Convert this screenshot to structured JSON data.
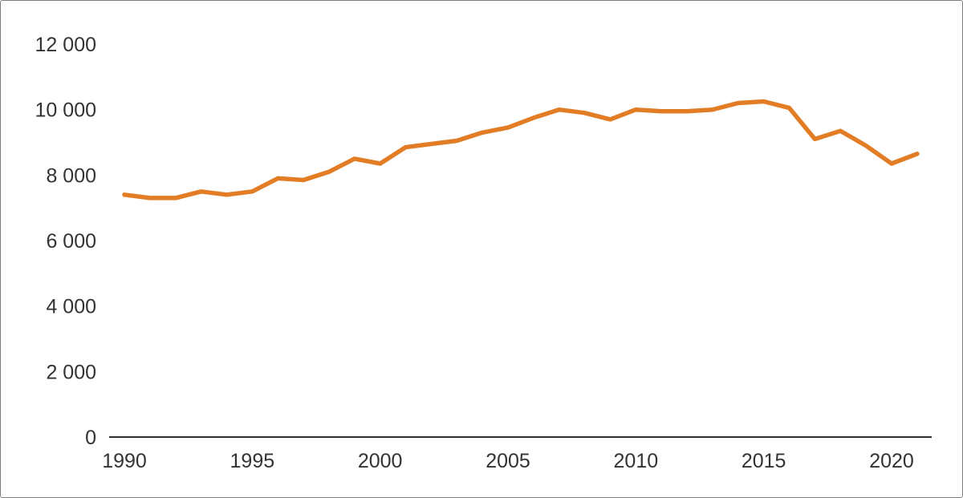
{
  "page": {
    "background_color": "#ffffff",
    "border_color": "#7d7d7d"
  },
  "chart_data": {
    "type": "line",
    "title": "",
    "xlabel": "",
    "ylabel": "",
    "x": [
      1990,
      1991,
      1992,
      1993,
      1994,
      1995,
      1996,
      1997,
      1998,
      1999,
      2000,
      2001,
      2002,
      2003,
      2004,
      2005,
      2006,
      2007,
      2008,
      2009,
      2010,
      2011,
      2012,
      2013,
      2014,
      2015,
      2016,
      2017,
      2018,
      2019,
      2020,
      2021
    ],
    "series": [
      {
        "name": "line-series",
        "color": "#e27d26",
        "values": [
          7400,
          7300,
          7300,
          7500,
          7400,
          7500,
          7900,
          7850,
          8100,
          8500,
          8350,
          8850,
          8950,
          9050,
          9300,
          9450,
          9750,
          10000,
          9900,
          9700,
          10000,
          9950,
          9950,
          10000,
          10200,
          10250,
          10050,
          9100,
          9350,
          8900,
          8350,
          8650
        ]
      }
    ],
    "xlim": [
      1990,
      2021
    ],
    "ylim": [
      0,
      12000
    ],
    "y_ticks": [
      0,
      2000,
      4000,
      6000,
      8000,
      10000,
      12000
    ],
    "y_tick_labels": [
      "0",
      "2 000",
      "4 000",
      "6 000",
      "8 000",
      "10 000",
      "12 000"
    ],
    "x_ticks": [
      1990,
      1995,
      2000,
      2005,
      2010,
      2015,
      2020
    ],
    "x_tick_labels": [
      "1990",
      "1995",
      "2000",
      "2005",
      "2010",
      "2015",
      "2020"
    ],
    "grid": false,
    "legend": "none",
    "axis_color": "#2e2e2e",
    "tick_label_color": "#333333",
    "line_width": 5.5
  }
}
